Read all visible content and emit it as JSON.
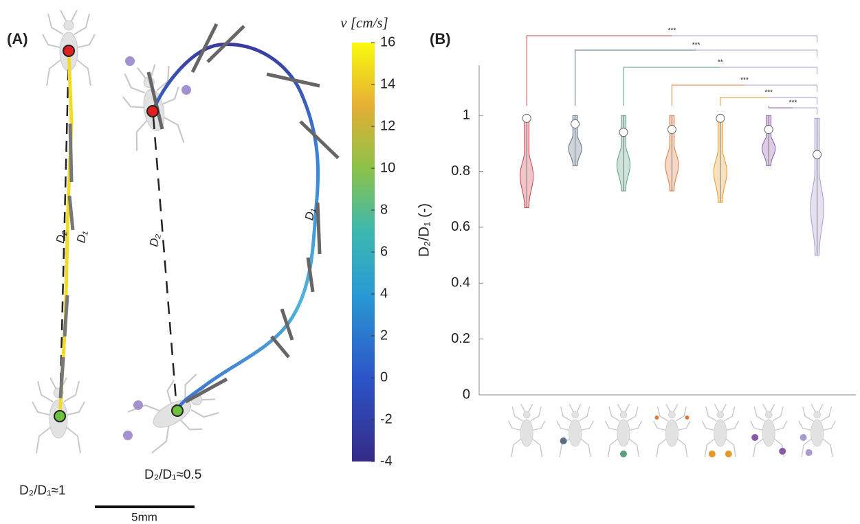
{
  "panel_a": {
    "label": "(A)",
    "colorbar": {
      "label": "v [cm/s]",
      "lim": [
        -4,
        16
      ],
      "ticks": [
        -4,
        -2,
        0,
        2,
        4,
        6,
        8,
        10,
        12,
        14,
        16
      ]
    },
    "straight": {
      "d2": "D₂",
      "d1": "D₁",
      "ratio": "D₂/D₁≈1"
    },
    "loop": {
      "d2": "D₂",
      "d1": "D₁",
      "ratio": "D₂/D₁≈0.5"
    },
    "scale_bar": "5mm"
  },
  "chart_data": {
    "type": "violin",
    "panel_label": "(B)",
    "ylabel": "D₂/D₁ (-)",
    "categories": [
      null,
      null,
      null,
      null,
      null,
      null,
      null
    ],
    "colors": [
      "#c8404a",
      "#5a6f84",
      "#5aa07e",
      "#e07a3a",
      "#e39a28",
      "#8a58a8",
      "#a89ad0"
    ],
    "values": [
      0.99,
      0.97,
      0.94,
      0.95,
      0.99,
      0.95,
      0.86
    ],
    "min": [
      0.67,
      0.82,
      0.73,
      0.73,
      0.69,
      0.82,
      0.5
    ],
    "max": [
      1.0,
      1.0,
      1.0,
      1.0,
      1.0,
      1.0,
      0.99
    ],
    "significance": [
      "***",
      "***",
      "**",
      "***",
      "***",
      "***"
    ],
    "ylim": [
      0,
      1.18
    ],
    "yticks": [
      0,
      0.2,
      0.4,
      0.6,
      0.8,
      1
    ]
  }
}
